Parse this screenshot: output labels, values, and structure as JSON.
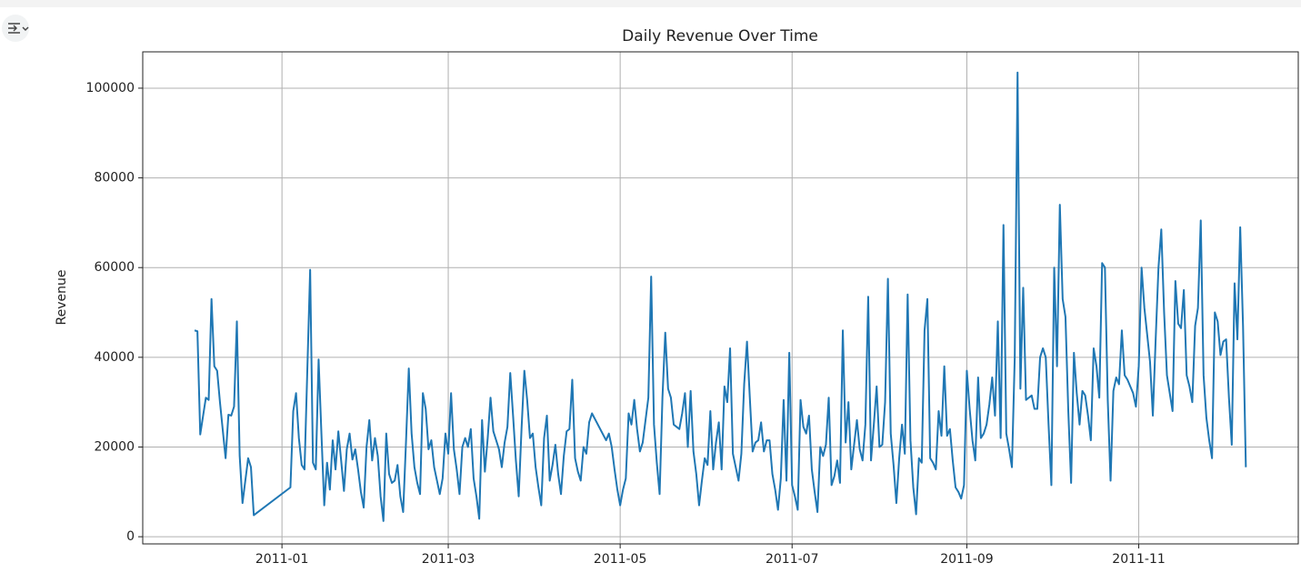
{
  "chart_data": {
    "type": "line",
    "title": "Daily Revenue Over Time",
    "ylabel": "Revenue",
    "grid": true,
    "xlim": [
      -49.4,
      360.6
    ],
    "ylim": [
      -1600,
      108100
    ],
    "xticks": [
      {
        "value": 0,
        "label": "2011-01"
      },
      {
        "value": 59,
        "label": "2011-03"
      },
      {
        "value": 120,
        "label": "2011-05"
      },
      {
        "value": 181,
        "label": "2011-07"
      },
      {
        "value": 243,
        "label": "2011-09"
      },
      {
        "value": 304,
        "label": "2011-11"
      }
    ],
    "yticks": [
      0,
      20000,
      40000,
      60000,
      80000,
      100000
    ],
    "x": [
      -31,
      -30,
      -29,
      -27,
      -26,
      -25,
      -24,
      -23,
      -22,
      -20,
      -19,
      -18,
      -17,
      -16,
      -15,
      -14,
      -12,
      -11,
      -10,
      3,
      4,
      5,
      6,
      7,
      8,
      10,
      11,
      12,
      13,
      14,
      15,
      16,
      17,
      18,
      19,
      20,
      21,
      22,
      23,
      24,
      25,
      26,
      27,
      28,
      29,
      30,
      31,
      32,
      33,
      34,
      35,
      36,
      37,
      38,
      39,
      40,
      41,
      42,
      43,
      44,
      45,
      46,
      47,
      48,
      49,
      50,
      51,
      52,
      53,
      54,
      55,
      56,
      57,
      58,
      59,
      60,
      61,
      62,
      63,
      64,
      65,
      66,
      67,
      68,
      69,
      70,
      71,
      72,
      73,
      74,
      75,
      76,
      77,
      78,
      79,
      80,
      81,
      82,
      83,
      84,
      85,
      86,
      87,
      88,
      89,
      90,
      91,
      92,
      93,
      94,
      95,
      96,
      97,
      98,
      99,
      100,
      101,
      102,
      103,
      104,
      105,
      106,
      107,
      108,
      109,
      110,
      115,
      116,
      117,
      118,
      119,
      120,
      121,
      122,
      123,
      124,
      125,
      126,
      127,
      128,
      129,
      130,
      131,
      132,
      133,
      134,
      135,
      136,
      137,
      138,
      139,
      140,
      141,
      142,
      143,
      144,
      145,
      146,
      147,
      148,
      149,
      150,
      151,
      152,
      153,
      154,
      155,
      156,
      157,
      158,
      159,
      160,
      161,
      162,
      163,
      164,
      165,
      166,
      167,
      168,
      169,
      170,
      171,
      172,
      173,
      174,
      175,
      176,
      177,
      178,
      179,
      180,
      181,
      182,
      183,
      184,
      185,
      186,
      187,
      188,
      189,
      190,
      191,
      192,
      193,
      194,
      195,
      196,
      197,
      198,
      199,
      200,
      201,
      202,
      203,
      204,
      205,
      206,
      207,
      208,
      209,
      210,
      211,
      212,
      213,
      214,
      215,
      216,
      217,
      218,
      219,
      220,
      221,
      222,
      223,
      224,
      225,
      226,
      227,
      228,
      229,
      230,
      231,
      232,
      233,
      234,
      235,
      236,
      237,
      238,
      239,
      240,
      241,
      242,
      243,
      244,
      245,
      246,
      247,
      248,
      249,
      250,
      251,
      252,
      253,
      254,
      255,
      256,
      257,
      258,
      259,
      260,
      261,
      262,
      263,
      264,
      265,
      266,
      267,
      268,
      269,
      270,
      271,
      272,
      273,
      274,
      275,
      276,
      277,
      278,
      279,
      280,
      281,
      282,
      283,
      284,
      285,
      286,
      287,
      288,
      289,
      290,
      291,
      292,
      293,
      294,
      295,
      296,
      297,
      298,
      299,
      300,
      301,
      302,
      303,
      304,
      305,
      306,
      307,
      308,
      309,
      310,
      311,
      312,
      313,
      314,
      315,
      316,
      317,
      318,
      319,
      320,
      321,
      322,
      323,
      324,
      325,
      326,
      327,
      328,
      329,
      330,
      331,
      332,
      333,
      334,
      335,
      336,
      337,
      338,
      339,
      340,
      341,
      342
    ],
    "series": [
      {
        "name": "Revenue",
        "color": "#1f77b4",
        "values": [
          46000,
          45800,
          22800,
          31000,
          30500,
          53000,
          38000,
          37000,
          30000,
          17500,
          27200,
          27000,
          29000,
          48000,
          18000,
          7500,
          17500,
          15500,
          4800,
          11000,
          28000,
          32000,
          22000,
          16000,
          15000,
          59500,
          16500,
          15000,
          39500,
          23000,
          7000,
          16500,
          10500,
          21500,
          15000,
          23500,
          17000,
          10200,
          19500,
          23000,
          17200,
          19500,
          15000,
          10000,
          6500,
          20000,
          26000,
          17000,
          22000,
          18000,
          9000,
          3500,
          23000,
          14000,
          12000,
          12500,
          16000,
          9000,
          5500,
          21000,
          37500,
          23000,
          15500,
          12000,
          9500,
          32000,
          28500,
          19500,
          21500,
          15500,
          12500,
          9500,
          13000,
          23000,
          18500,
          32000,
          19500,
          15000,
          9500,
          20000,
          22000,
          20000,
          24000,
          13000,
          9000,
          4000,
          26000,
          14500,
          22000,
          31000,
          23500,
          21500,
          19500,
          15500,
          21000,
          24500,
          36500,
          27000,
          17000,
          9000,
          24000,
          37000,
          30500,
          22000,
          23000,
          15500,
          11000,
          7000,
          22000,
          27000,
          12500,
          16000,
          20500,
          14000,
          9500,
          18000,
          23500,
          24000,
          35000,
          17500,
          14500,
          12500,
          20000,
          18500,
          25500,
          27500,
          21500,
          23000,
          20000,
          15000,
          10500,
          7000,
          10500,
          13000,
          27500,
          25000,
          30500,
          24000,
          19000,
          21000,
          26000,
          31000,
          58000,
          25000,
          16500,
          9500,
          31000,
          45500,
          33000,
          31000,
          25000,
          24500,
          24000,
          27500,
          32000,
          20000,
          32500,
          19000,
          14000,
          7000,
          12500,
          17500,
          16000,
          28000,
          15000,
          21000,
          25500,
          15000,
          33500,
          30000,
          42000,
          18500,
          15500,
          12500,
          18500,
          34000,
          43500,
          31000,
          19000,
          21000,
          21500,
          25500,
          19000,
          21500,
          21500,
          14000,
          10500,
          6000,
          13000,
          30500,
          12500,
          41000,
          11500,
          9000,
          6000,
          30500,
          24500,
          23000,
          27000,
          15000,
          10000,
          5500,
          20000,
          18000,
          20500,
          31000,
          11500,
          13500,
          17000,
          12000,
          46000,
          21000,
          30000,
          15000,
          20500,
          26000,
          19500,
          17000,
          25000,
          53500,
          17000,
          25000,
          33500,
          20000,
          20500,
          30000,
          57500,
          23000,
          16000,
          7500,
          17500,
          25000,
          18500,
          54000,
          21500,
          11000,
          5000,
          17500,
          16500,
          46000,
          53000,
          17500,
          16500,
          15000,
          28000,
          22500,
          38000,
          22500,
          24000,
          17000,
          11000,
          10000,
          8500,
          11500,
          37000,
          28500,
          21500,
          17000,
          35500,
          22000,
          23000,
          25000,
          29500,
          35500,
          27000,
          48000,
          22000,
          69500,
          23000,
          19500,
          15500,
          40000,
          103500,
          33000,
          55500,
          30500,
          31000,
          31500,
          28500,
          28500,
          40000,
          42000,
          40000,
          25000,
          11500,
          60000,
          38000,
          74000,
          53000,
          49000,
          28000,
          12000,
          41000,
          32000,
          25000,
          32500,
          31500,
          27000,
          21500,
          42000,
          38000,
          31000,
          61000,
          60000,
          30500,
          12500,
          32500,
          35500,
          34000,
          46000,
          36000,
          35000,
          33500,
          32000,
          29000,
          38000,
          60000,
          51000,
          45000,
          39000,
          27000,
          44000,
          60000,
          68500,
          50000,
          36000,
          32000,
          28000,
          57000,
          47500,
          46500,
          55000,
          36000,
          33500,
          30000,
          47000,
          51000,
          70500,
          36000,
          26500,
          21500,
          17500,
          50000,
          48000,
          40500,
          43500,
          44000,
          31000,
          20500,
          56500,
          44000,
          69000,
          47000,
          15500
        ]
      }
    ]
  }
}
